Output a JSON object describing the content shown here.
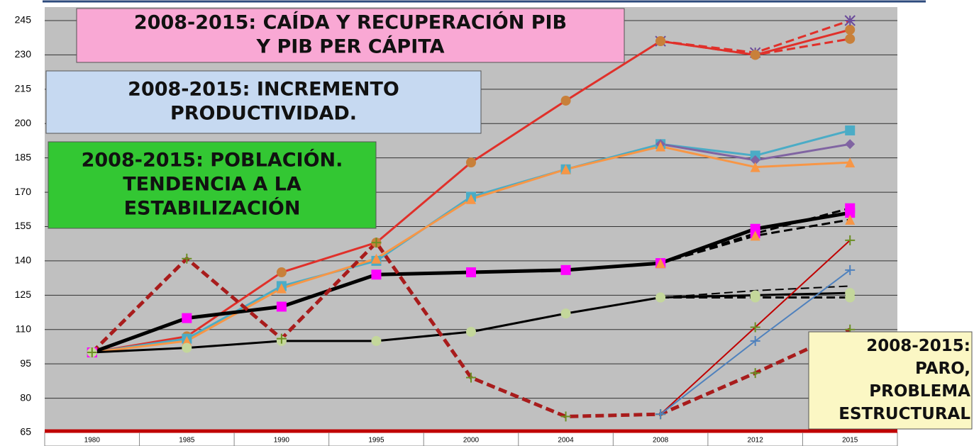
{
  "chart_data": {
    "type": "line",
    "categories": [
      "1980",
      "1985",
      "1990",
      "1995",
      "2000",
      "2004",
      "2008",
      "2012",
      "2015"
    ],
    "ylim": [
      65,
      245
    ],
    "yticks": [
      65,
      80,
      95,
      110,
      125,
      140,
      155,
      170,
      185,
      200,
      215,
      230,
      245
    ],
    "grid": true,
    "series": [
      {
        "color": "#e0302a",
        "width": 3,
        "dash": false,
        "marker": "circle",
        "markerColor": "#c8803a",
        "values": [
          100,
          107,
          135,
          148,
          183,
          210,
          236,
          230,
          241
        ]
      },
      {
        "color": "#e0302a",
        "width": 3,
        "dash": true,
        "marker": "star",
        "markerColor": "#6a4a9a",
        "values": [
          null,
          null,
          null,
          null,
          null,
          null,
          236,
          231,
          245
        ]
      },
      {
        "color": "#e0302a",
        "width": 3,
        "dash": true,
        "marker": "circle",
        "markerColor": "#c8803a",
        "values": [
          null,
          null,
          null,
          null,
          null,
          null,
          236,
          230,
          237
        ]
      },
      {
        "color": "#4bacc6",
        "width": 3,
        "dash": false,
        "marker": "square",
        "markerColor": "#4bacc6",
        "values": [
          100,
          106,
          129,
          140,
          168,
          180,
          191,
          186,
          197
        ]
      },
      {
        "color": "#8064a2",
        "width": 3,
        "dash": false,
        "marker": "diamond",
        "markerColor": "#8064a2",
        "values": [
          null,
          null,
          null,
          null,
          null,
          null,
          191,
          184,
          191
        ]
      },
      {
        "color": "#f79646",
        "width": 3,
        "dash": false,
        "marker": "triangle",
        "markerColor": "#f79646",
        "values": [
          100,
          105,
          128,
          141,
          167,
          180,
          190,
          181,
          183
        ]
      },
      {
        "color": "#000000",
        "width": 5,
        "dash": false,
        "marker": "square",
        "markerColor": "#ff00ff",
        "values": [
          100,
          115,
          120,
          134,
          135,
          136,
          139,
          154,
          161
        ]
      },
      {
        "color": "#000000",
        "width": 3,
        "dash": true,
        "marker": "square",
        "markerColor": "#ff00ff",
        "values": [
          null,
          null,
          null,
          null,
          null,
          null,
          139,
          152,
          163
        ]
      },
      {
        "color": "#000000",
        "width": 3,
        "dash": true,
        "marker": "triangle",
        "markerColor": "#f79646",
        "values": [
          null,
          null,
          null,
          null,
          null,
          null,
          139,
          151,
          158
        ]
      },
      {
        "color": "#000000",
        "width": 3,
        "dash": false,
        "marker": "circle",
        "markerColor": "#c4d79b",
        "values": [
          100,
          102,
          105,
          105,
          109,
          117,
          124,
          125,
          126
        ]
      },
      {
        "color": "#000000",
        "width": 3,
        "dash": true,
        "marker": "circle",
        "markerColor": "#c4d79b",
        "values": [
          null,
          null,
          null,
          null,
          null,
          null,
          124,
          124,
          124
        ]
      },
      {
        "color": "#000000",
        "width": 2,
        "dash": true,
        "marker": "none",
        "markerColor": "#000000",
        "values": [
          null,
          null,
          null,
          null,
          null,
          null,
          124,
          127,
          129
        ]
      },
      {
        "color": "#a81c1c",
        "width": 5,
        "dash": true,
        "marker": "plus",
        "markerColor": "#6b8e23",
        "values": [
          100,
          141,
          106,
          148,
          89,
          72,
          73,
          91,
          110
        ]
      },
      {
        "color": "#c00000",
        "width": 2,
        "dash": false,
        "marker": "plus",
        "markerColor": "#6b8e23",
        "values": [
          null,
          null,
          null,
          null,
          null,
          null,
          73,
          111,
          149
        ]
      },
      {
        "color": "#4f81bd",
        "width": 2,
        "dash": false,
        "marker": "plus",
        "markerColor": "#4f81bd",
        "values": [
          null,
          null,
          null,
          null,
          null,
          null,
          73,
          105,
          136
        ]
      }
    ],
    "annotations": [
      {
        "color": "#f9a8d4",
        "lines": [
          "2008-2015: CAÍDA Y RECUPERACIÓN PIB",
          "Y PIB PER CÁPITA"
        ]
      },
      {
        "color": "#c6d9f1",
        "lines": [
          "2008-2015: INCREMENTO",
          "PRODUCTIVIDAD."
        ]
      },
      {
        "color": "#33c733",
        "lines": [
          "2008-2015: POBLACIÓN.",
          "TENDENCIA A LA",
          "ESTABILIZACIÓN"
        ]
      },
      {
        "color": "#fbf7c4",
        "lines": [
          "2008-2015:",
          "PARO,",
          "PROBLEMA",
          "ESTRUCTURAL"
        ]
      }
    ]
  }
}
